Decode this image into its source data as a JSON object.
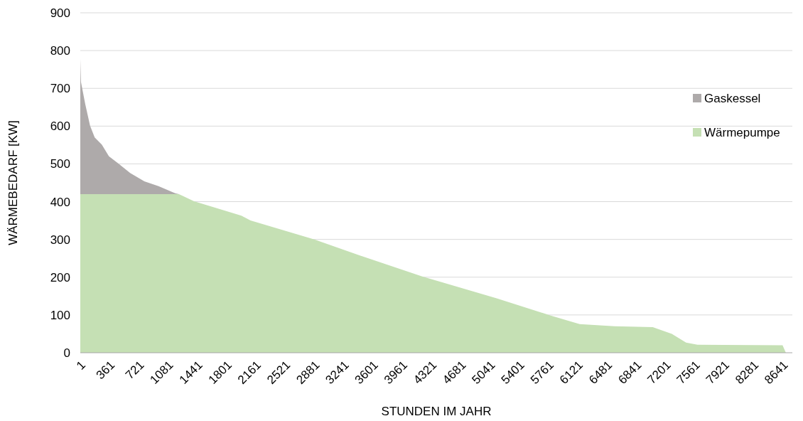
{
  "chart_data": {
    "type": "area",
    "stacked": true,
    "xlabel": "STUNDEN IM JAHR",
    "ylabel": "WÄRMEBEDARF [KW]",
    "x": [
      1,
      5,
      9,
      62,
      121,
      178,
      265,
      353,
      470,
      614,
      789,
      963,
      1168,
      1214,
      1400,
      1982,
      2095,
      2881,
      3378,
      4207,
      5123,
      5795,
      6144,
      6572,
      7043,
      7278,
      7453,
      7593,
      8640,
      8680
    ],
    "series": [
      {
        "name": "Wärmepumpe",
        "color": "#c5e0b4",
        "values": [
          420,
          420,
          420,
          420,
          420,
          420,
          420,
          420,
          420,
          420,
          420,
          420,
          420,
          420,
          401,
          363,
          350,
          300,
          262,
          202,
          144,
          98,
          76,
          70,
          68,
          50,
          27,
          21,
          20,
          0
        ]
      },
      {
        "name": "Gaskessel",
        "color": "#aeaaaa",
        "values": [
          358,
          326,
          297,
          238,
          181,
          150,
          131,
          100,
          81,
          56,
          34,
          21,
          2,
          0,
          0,
          0,
          0,
          0,
          0,
          0,
          0,
          0,
          0,
          0,
          0,
          0,
          0,
          0,
          0,
          0
        ]
      }
    ],
    "xlim": [
      1,
      8760
    ],
    "xticks": [
      1,
      361,
      721,
      1081,
      1441,
      1801,
      2161,
      2521,
      2881,
      3241,
      3601,
      3961,
      4321,
      4681,
      5041,
      5401,
      5761,
      6121,
      6481,
      6841,
      7201,
      7561,
      7921,
      8281,
      8641
    ],
    "ylim": [
      0,
      900
    ],
    "yticks": [
      0,
      100,
      200,
      300,
      400,
      500,
      600,
      700,
      800,
      900
    ],
    "grid": "y",
    "legend": "right"
  }
}
